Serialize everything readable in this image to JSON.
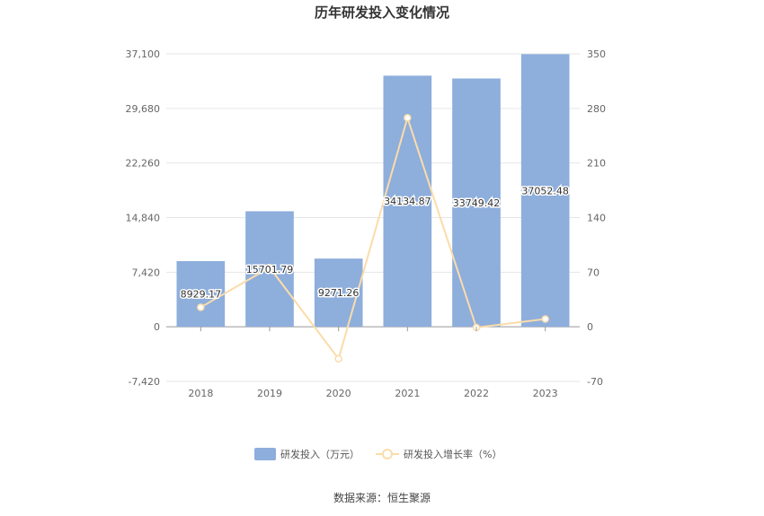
{
  "chart_data": {
    "type": "bar",
    "title": "历年研发投入变化情况",
    "categories": [
      "2018",
      "2019",
      "2020",
      "2021",
      "2022",
      "2023"
    ],
    "series": [
      {
        "name": "研发投入（万元）",
        "type": "bar",
        "axis": "left",
        "color": "#8eaedc",
        "values": [
          8929.17,
          15701.79,
          9271.26,
          34134.87,
          33749.42,
          37052.48
        ],
        "labels": [
          "8929.17",
          "15701.79",
          "9271.26",
          "34134.87",
          "33749.42",
          "37052.48"
        ]
      },
      {
        "name": "研发投入增长率（%）",
        "type": "line",
        "axis": "right",
        "color": "#fbdcaa",
        "values": [
          25,
          76,
          -41,
          268,
          -1,
          10
        ]
      }
    ],
    "y_left": {
      "ylim": [
        -7420,
        37100
      ],
      "ticks": [
        37100,
        29680,
        22260,
        14840,
        7420,
        0,
        -7420
      ],
      "tick_labels": [
        "37,100",
        "29,680",
        "22,260",
        "14,840",
        "7,420",
        "0",
        "-7,420"
      ]
    },
    "y_right": {
      "ylim": [
        -70,
        350
      ],
      "ticks": [
        350,
        280,
        210,
        140,
        70,
        0,
        -70
      ],
      "tick_labels": [
        "350",
        "280",
        "210",
        "140",
        "70",
        "0",
        "-70"
      ]
    },
    "grid": true,
    "legend": "bottom"
  },
  "source": "数据来源：恒生聚源"
}
